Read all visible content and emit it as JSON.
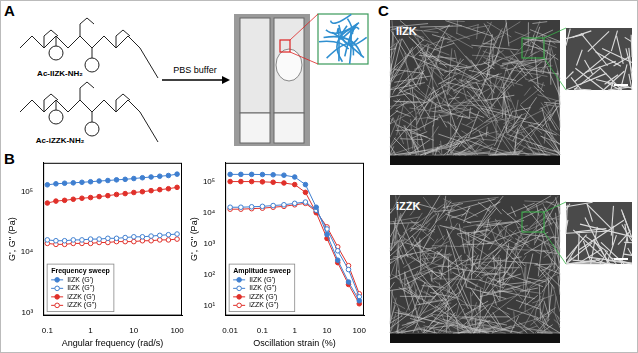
{
  "panel_labels": [
    "A",
    "B",
    "C"
  ],
  "panel_a": {
    "compounds": [
      "Ac-IIZK-NH₂",
      "Ac-iZZK-NH₂"
    ],
    "reagent": "PBS buffer"
  },
  "panel_c": {
    "images": [
      "IIZK",
      "iZZK"
    ]
  },
  "chart_data": [
    {
      "type": "line",
      "title": "Frequency sweep",
      "x_label": "Angular frequency (rad/s)",
      "y_label": "G', G'' (Pa)",
      "log": true,
      "grid": false,
      "legend": "lower left",
      "x": [
        0.1,
        0.158,
        0.251,
        0.398,
        0.631,
        1,
        1.58,
        2.51,
        3.98,
        6.31,
        10,
        15.8,
        25.1,
        39.8,
        63.1,
        100
      ],
      "xlim": [
        0.08,
        130
      ],
      "xticks": [
        0.1,
        1,
        10,
        100
      ],
      "ylim": [
        900,
        300000
      ],
      "yticks": [
        {
          "value": 1000,
          "label": "10³"
        },
        {
          "value": 10000,
          "label": "10⁴"
        },
        {
          "value": 100000,
          "label": "10⁵"
        }
      ],
      "series": [
        {
          "name": "IIZK (G')",
          "color": "#3f7fd0",
          "marker": "circle",
          "line_style": "solid",
          "values": [
            130000,
            135000,
            138000,
            140000,
            143000,
            146000,
            150000,
            153000,
            157000,
            160000,
            165000,
            170000,
            175000,
            180000,
            185000,
            195000
          ]
        },
        {
          "name": "IIZK (G'')",
          "color": "#3f7fd0",
          "marker": "open_circle",
          "line_style": "solid",
          "values": [
            16000,
            15500,
            15500,
            16000,
            16000,
            16500,
            16500,
            17000,
            17000,
            17500,
            18000,
            18000,
            18500,
            19000,
            19500,
            20000
          ]
        },
        {
          "name": "iZZK (G')",
          "color": "#e0302a",
          "marker": "circle",
          "line_style": "solid",
          "values": [
            65000,
            70000,
            72000,
            75000,
            78000,
            80000,
            83000,
            86000,
            90000,
            93000,
            97000,
            100000,
            104000,
            108000,
            112000,
            118000
          ]
        },
        {
          "name": "iZZK (G'')",
          "color": "#e0302a",
          "marker": "open_circle",
          "line_style": "solid",
          "values": [
            14000,
            13500,
            13500,
            14000,
            14000,
            14000,
            14500,
            14500,
            15000,
            15000,
            15000,
            15500,
            15500,
            16000,
            16000,
            16500
          ]
        }
      ]
    },
    {
      "type": "line",
      "title": "Amplitude sweep",
      "x_label": "Oscillation strain (%)",
      "y_label": "G', G'' (Pa)",
      "log": true,
      "grid": false,
      "legend": "lower left",
      "x": [
        0.01,
        0.0215,
        0.0464,
        0.1,
        0.215,
        0.464,
        1,
        2.15,
        4.64,
        10,
        21.5,
        46.4,
        100
      ],
      "xlim": [
        0.007,
        140
      ],
      "xticks": [
        0.01,
        0.1,
        1,
        10,
        100
      ],
      "ylim": [
        5,
        400000
      ],
      "yticks": [
        {
          "value": 10,
          "label": "10¹"
        },
        {
          "value": 100,
          "label": "10²"
        },
        {
          "value": 1000,
          "label": "10³"
        },
        {
          "value": 10000,
          "label": "10⁴"
        },
        {
          "value": 100000,
          "label": "10⁵"
        }
      ],
      "series": [
        {
          "name": "IIZK (G')",
          "color": "#3f7fd0",
          "marker": "circle",
          "line_style": "solid",
          "values": [
            170000,
            170000,
            170000,
            168000,
            165000,
            160000,
            140000,
            80000,
            15000,
            2000,
            300,
            60,
            15
          ]
        },
        {
          "name": "IIZK (G'')",
          "color": "#3f7fd0",
          "marker": "open_circle",
          "line_style": "solid",
          "values": [
            15000,
            15000,
            15500,
            16000,
            17000,
            18000,
            20000,
            22000,
            12000,
            3000,
            600,
            150,
            20
          ]
        },
        {
          "name": "iZZK (G')",
          "color": "#e0302a",
          "marker": "circle",
          "line_style": "solid",
          "values": [
            100000,
            100000,
            100000,
            98000,
            95000,
            90000,
            80000,
            45000,
            10000,
            1500,
            250,
            50,
            12
          ]
        },
        {
          "name": "iZZK (G'')",
          "color": "#e0302a",
          "marker": "open_circle",
          "line_style": "solid",
          "values": [
            13000,
            13000,
            13500,
            14000,
            15000,
            16000,
            18000,
            20000,
            11000,
            3500,
            800,
            200,
            25
          ]
        }
      ]
    }
  ]
}
